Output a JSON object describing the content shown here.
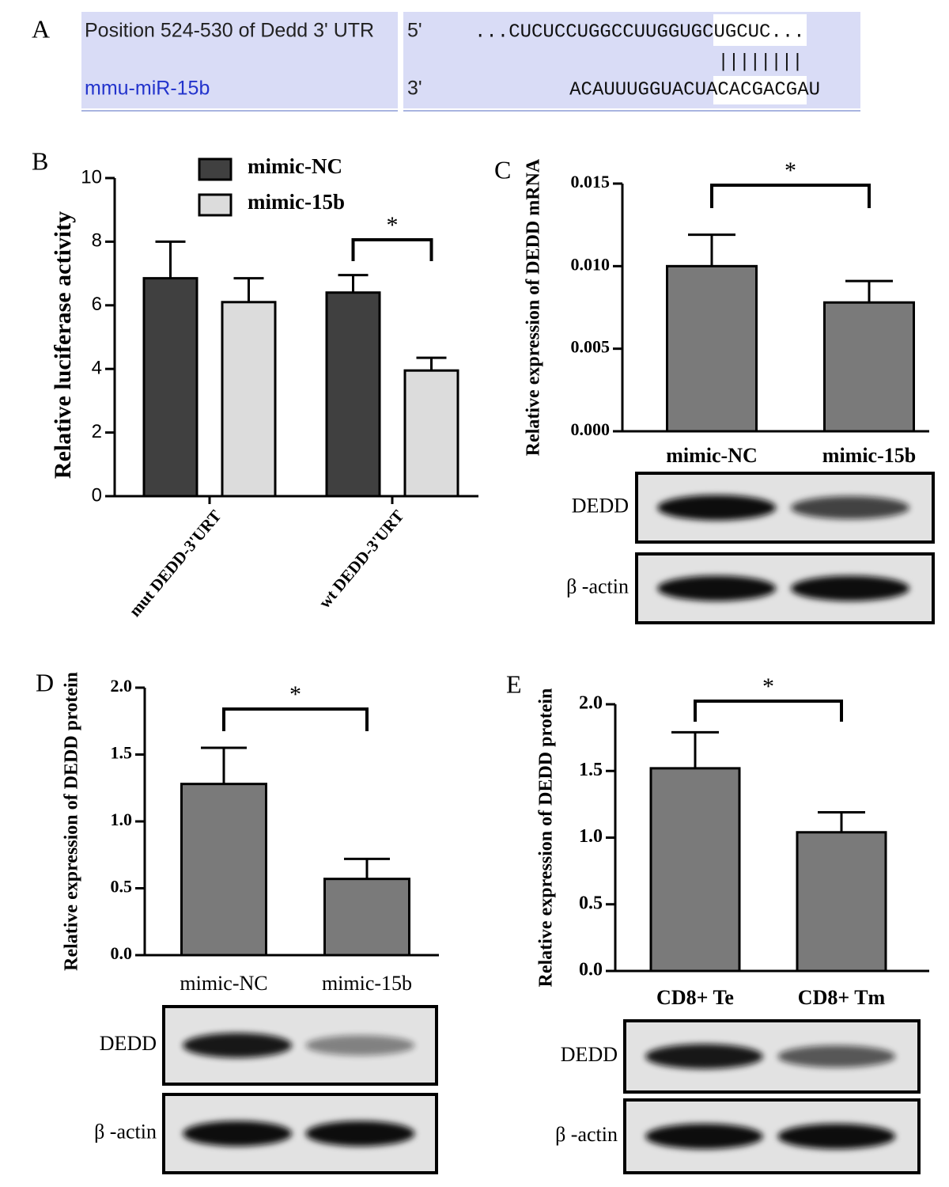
{
  "panels": [
    "A",
    "B",
    "C",
    "D",
    "E"
  ],
  "alignment": {
    "target_label": "Position 524-530 of Dedd 3' UTR",
    "target_end": "5'",
    "target_seq": "...CUCUCCUGGCCUUGGUGCUGCUC...",
    "pairs": "||||||||",
    "mirna_label": "mmu-miR-15b",
    "mirna_end": "3'",
    "mirna_seq": "ACAUUUGGUACUACACGACGAU"
  },
  "chart_data": [
    {
      "type": "bar",
      "y_label": "Relative luciferase activity",
      "categories": [
        "mut DEDD-3'URT",
        "wt DEDD-3'URT"
      ],
      "series": [
        {
          "name": "mimic-NC",
          "color": "#404040",
          "values": [
            6.85,
            6.4
          ],
          "errors": [
            1.15,
            0.55
          ]
        },
        {
          "name": "mimic-15b",
          "color": "#dcdcdc",
          "values": [
            6.1,
            3.95
          ],
          "errors": [
            0.75,
            0.4
          ]
        }
      ],
      "ylim": [
        0,
        10
      ],
      "yticks": [
        0,
        2,
        4,
        6,
        8,
        10
      ],
      "annotation": "*",
      "legend": "top"
    },
    {
      "type": "bar",
      "y_label": "Relative expression of DEDD mRNA",
      "categories": [
        "mimic-NC",
        "mimic-15b"
      ],
      "values": [
        0.01,
        0.0078
      ],
      "errors": [
        0.0019,
        0.0013
      ],
      "color": "#7a7a7a",
      "ylim": [
        0,
        0.015
      ],
      "yticks": [
        {
          "value": 0,
          "label": "0.000"
        },
        {
          "value": 0.005,
          "label": "0.005"
        },
        {
          "value": 0.01,
          "label": "0.010"
        },
        {
          "value": 0.015,
          "label": "0.015"
        }
      ],
      "annotation": "*",
      "blot_labels": [
        "DEDD",
        "β -actin"
      ]
    },
    {
      "type": "bar",
      "y_label": "Relative expression of DEDD protein",
      "categories": [
        "mimic-NC",
        "mimic-15b"
      ],
      "values": [
        1.28,
        0.57
      ],
      "errors": [
        0.27,
        0.15
      ],
      "color": "#7a7a7a",
      "ylim": [
        0,
        2
      ],
      "yticks": [
        {
          "value": 0,
          "label": "0.0"
        },
        {
          "value": 0.5,
          "label": "0.5"
        },
        {
          "value": 1,
          "label": "1.0"
        },
        {
          "value": 1.5,
          "label": "1.5"
        },
        {
          "value": 2,
          "label": "2.0"
        }
      ],
      "annotation": "*",
      "blot_labels": [
        "DEDD",
        "β -actin"
      ]
    },
    {
      "type": "bar",
      "y_label": "Relative expression of DEDD protein",
      "categories": [
        "CD8+ Te",
        "CD8+ Tm"
      ],
      "values": [
        1.52,
        1.04
      ],
      "errors": [
        0.27,
        0.15
      ],
      "color": "#7a7a7a",
      "ylim": [
        0,
        2
      ],
      "yticks": [
        {
          "value": 0,
          "label": "0.0"
        },
        {
          "value": 0.5,
          "label": "0.5"
        },
        {
          "value": 1,
          "label": "1.0"
        },
        {
          "value": 1.5,
          "label": "1.5"
        },
        {
          "value": 2,
          "label": "2.0"
        }
      ],
      "annotation": "*",
      "blot_labels": [
        "DEDD",
        "β -actin"
      ]
    }
  ]
}
